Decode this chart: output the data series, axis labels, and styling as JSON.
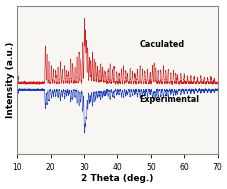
{
  "title": "",
  "xlabel": "2 Theta (deg.)",
  "ylabel": "Intensity (a.u.)",
  "xlim": [
    10,
    70
  ],
  "ylim": [
    -1.0,
    1.2
  ],
  "x_ticks": [
    10,
    20,
    30,
    40,
    50,
    60,
    70
  ],
  "calculated_color": "#cc1111",
  "experimental_color": "#1133bb",
  "label_calculated": "Caculated",
  "label_experimental": "Experimental",
  "background_color": "#ffffff",
  "plot_bg": "#f8f6f2",
  "baseline_calc": 0.05,
  "baseline_exp": -0.05,
  "calculated_peaks": [
    [
      10.2,
      0.1
    ],
    [
      18.4,
      0.55
    ],
    [
      18.9,
      0.42
    ],
    [
      19.5,
      0.32
    ],
    [
      20.2,
      0.25
    ],
    [
      20.8,
      0.2
    ],
    [
      21.5,
      0.18
    ],
    [
      22.2,
      0.22
    ],
    [
      22.9,
      0.3
    ],
    [
      23.5,
      0.2
    ],
    [
      24.2,
      0.25
    ],
    [
      24.8,
      0.18
    ],
    [
      25.4,
      0.16
    ],
    [
      26.0,
      0.35
    ],
    [
      26.6,
      0.28
    ],
    [
      27.3,
      0.22
    ],
    [
      27.9,
      0.38
    ],
    [
      28.5,
      0.45
    ],
    [
      29.0,
      0.35
    ],
    [
      29.6,
      0.6
    ],
    [
      30.1,
      0.95
    ],
    [
      30.4,
      0.78
    ],
    [
      30.7,
      0.62
    ],
    [
      31.1,
      0.52
    ],
    [
      31.6,
      0.38
    ],
    [
      32.0,
      0.32
    ],
    [
      32.5,
      0.45
    ],
    [
      33.0,
      0.35
    ],
    [
      33.5,
      0.3
    ],
    [
      34.0,
      0.25
    ],
    [
      34.5,
      0.2
    ],
    [
      35.0,
      0.28
    ],
    [
      35.5,
      0.22
    ],
    [
      36.0,
      0.18
    ],
    [
      36.5,
      0.16
    ],
    [
      37.2,
      0.2
    ],
    [
      37.8,
      0.28
    ],
    [
      38.5,
      0.2
    ],
    [
      39.0,
      0.24
    ],
    [
      39.8,
      0.16
    ],
    [
      40.5,
      0.14
    ],
    [
      41.2,
      0.2
    ],
    [
      41.8,
      0.25
    ],
    [
      42.5,
      0.18
    ],
    [
      43.0,
      0.14
    ],
    [
      43.8,
      0.2
    ],
    [
      44.5,
      0.18
    ],
    [
      45.2,
      0.14
    ],
    [
      46.0,
      0.2
    ],
    [
      46.8,
      0.25
    ],
    [
      47.5,
      0.2
    ],
    [
      48.2,
      0.18
    ],
    [
      49.0,
      0.2
    ],
    [
      49.8,
      0.14
    ],
    [
      50.5,
      0.25
    ],
    [
      51.0,
      0.3
    ],
    [
      51.5,
      0.22
    ],
    [
      52.2,
      0.18
    ],
    [
      53.0,
      0.2
    ],
    [
      53.8,
      0.25
    ],
    [
      54.5,
      0.18
    ],
    [
      55.2,
      0.2
    ],
    [
      56.0,
      0.14
    ],
    [
      56.8,
      0.18
    ],
    [
      57.5,
      0.14
    ],
    [
      58.0,
      0.12
    ],
    [
      59.0,
      0.14
    ],
    [
      60.0,
      0.12
    ],
    [
      61.0,
      0.1
    ],
    [
      62.0,
      0.1
    ],
    [
      63.0,
      0.1
    ],
    [
      64.0,
      0.08
    ],
    [
      65.0,
      0.1
    ],
    [
      66.0,
      0.08
    ],
    [
      67.0,
      0.08
    ],
    [
      68.0,
      0.08
    ],
    [
      69.0,
      0.06
    ]
  ],
  "experimental_peaks": [
    [
      10.2,
      -0.05
    ],
    [
      18.4,
      -0.28
    ],
    [
      18.9,
      -0.22
    ],
    [
      19.5,
      -0.16
    ],
    [
      20.2,
      -0.12
    ],
    [
      20.8,
      -0.1
    ],
    [
      21.5,
      -0.09
    ],
    [
      22.2,
      -0.11
    ],
    [
      22.9,
      -0.15
    ],
    [
      23.5,
      -0.1
    ],
    [
      24.2,
      -0.13
    ],
    [
      24.8,
      -0.09
    ],
    [
      25.4,
      -0.08
    ],
    [
      26.0,
      -0.18
    ],
    [
      26.6,
      -0.14
    ],
    [
      27.3,
      -0.11
    ],
    [
      27.9,
      -0.2
    ],
    [
      28.5,
      -0.24
    ],
    [
      29.0,
      -0.18
    ],
    [
      29.6,
      -0.32
    ],
    [
      30.1,
      -0.62
    ],
    [
      30.4,
      -0.5
    ],
    [
      30.7,
      -0.4
    ],
    [
      31.1,
      -0.28
    ],
    [
      31.6,
      -0.2
    ],
    [
      32.0,
      -0.16
    ],
    [
      32.5,
      -0.24
    ],
    [
      33.0,
      -0.18
    ],
    [
      33.5,
      -0.15
    ],
    [
      34.0,
      -0.12
    ],
    [
      34.5,
      -0.1
    ],
    [
      35.0,
      -0.14
    ],
    [
      35.5,
      -0.11
    ],
    [
      36.0,
      -0.09
    ],
    [
      36.5,
      -0.08
    ],
    [
      37.2,
      -0.1
    ],
    [
      37.8,
      -0.14
    ],
    [
      38.5,
      -0.1
    ],
    [
      39.0,
      -0.12
    ],
    [
      39.8,
      -0.08
    ],
    [
      40.5,
      -0.07
    ],
    [
      41.2,
      -0.1
    ],
    [
      41.8,
      -0.12
    ],
    [
      42.5,
      -0.09
    ],
    [
      43.0,
      -0.07
    ],
    [
      43.8,
      -0.1
    ],
    [
      44.5,
      -0.09
    ],
    [
      45.2,
      -0.07
    ],
    [
      46.0,
      -0.1
    ],
    [
      46.8,
      -0.12
    ],
    [
      47.5,
      -0.1
    ],
    [
      48.2,
      -0.09
    ],
    [
      49.0,
      -0.1
    ],
    [
      49.8,
      -0.07
    ],
    [
      50.5,
      -0.12
    ],
    [
      51.0,
      -0.15
    ],
    [
      51.5,
      -0.11
    ],
    [
      52.2,
      -0.09
    ],
    [
      53.0,
      -0.1
    ],
    [
      53.8,
      -0.12
    ],
    [
      54.5,
      -0.09
    ],
    [
      55.2,
      -0.1
    ],
    [
      56.0,
      -0.07
    ],
    [
      56.8,
      -0.09
    ],
    [
      57.5,
      -0.07
    ],
    [
      58.0,
      -0.06
    ],
    [
      59.0,
      -0.07
    ],
    [
      60.0,
      -0.06
    ],
    [
      61.0,
      -0.05
    ],
    [
      62.0,
      -0.05
    ],
    [
      63.0,
      -0.05
    ],
    [
      64.0,
      -0.04
    ],
    [
      65.0,
      -0.05
    ],
    [
      66.0,
      -0.04
    ],
    [
      67.0,
      -0.04
    ],
    [
      68.0,
      -0.04
    ],
    [
      69.0,
      -0.03
    ]
  ]
}
